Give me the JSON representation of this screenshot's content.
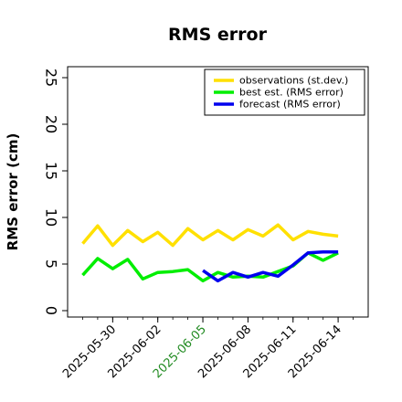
{
  "chart_data": {
    "type": "line",
    "title": "RMS error",
    "ylabel": "RMS error (cm)",
    "xlabel": "",
    "ylim": [
      0,
      25
    ],
    "yticks": [
      0,
      5,
      10,
      15,
      20,
      25
    ],
    "xlim": [
      "2025-05-27",
      "2025-06-16"
    ],
    "xticks": [
      "2025-05-30",
      "2025-06-02",
      "2025-06-05",
      "2025-06-08",
      "2025-06-11",
      "2025-06-14"
    ],
    "highlight_tick": "2025-06-05",
    "grid": false,
    "legend_position": "top-right",
    "series": [
      {
        "name": "observations (st.dev.)",
        "color": "#FFE000",
        "x": [
          "2025-05-28",
          "2025-05-29",
          "2025-05-30",
          "2025-05-31",
          "2025-06-01",
          "2025-06-02",
          "2025-06-03",
          "2025-06-04",
          "2025-06-05",
          "2025-06-06",
          "2025-06-07",
          "2025-06-08",
          "2025-06-09",
          "2025-06-10",
          "2025-06-11",
          "2025-06-12",
          "2025-06-13",
          "2025-06-14"
        ],
        "values": [
          7.2,
          9.1,
          7.0,
          8.6,
          7.4,
          8.4,
          7.0,
          8.8,
          7.6,
          8.6,
          7.6,
          8.7,
          8.0,
          9.2,
          7.6,
          8.5,
          8.2,
          8.0
        ]
      },
      {
        "name": "best est. (RMS error)",
        "color": "#00EE00",
        "x": [
          "2025-05-28",
          "2025-05-29",
          "2025-05-30",
          "2025-05-31",
          "2025-06-01",
          "2025-06-02",
          "2025-06-03",
          "2025-06-04",
          "2025-06-05",
          "2025-06-06",
          "2025-06-07",
          "2025-06-08",
          "2025-06-09",
          "2025-06-10",
          "2025-06-11",
          "2025-06-12",
          "2025-06-13",
          "2025-06-14"
        ],
        "values": [
          3.8,
          5.6,
          4.5,
          5.5,
          3.4,
          4.1,
          4.2,
          4.4,
          3.2,
          4.1,
          3.6,
          3.7,
          3.6,
          4.2,
          4.8,
          6.2,
          5.4,
          6.2
        ]
      },
      {
        "name": "forecast (RMS error)",
        "color": "#0000EE",
        "x": [
          "2025-06-05",
          "2025-06-06",
          "2025-06-07",
          "2025-06-08",
          "2025-06-09",
          "2025-06-10",
          "2025-06-11",
          "2025-06-12",
          "2025-06-13",
          "2025-06-14"
        ],
        "values": [
          4.3,
          3.2,
          4.1,
          3.6,
          4.1,
          3.7,
          4.9,
          6.2,
          6.3,
          6.3
        ]
      }
    ]
  },
  "colors": {
    "text": "#000000",
    "highlight_tick": "#228B22"
  }
}
